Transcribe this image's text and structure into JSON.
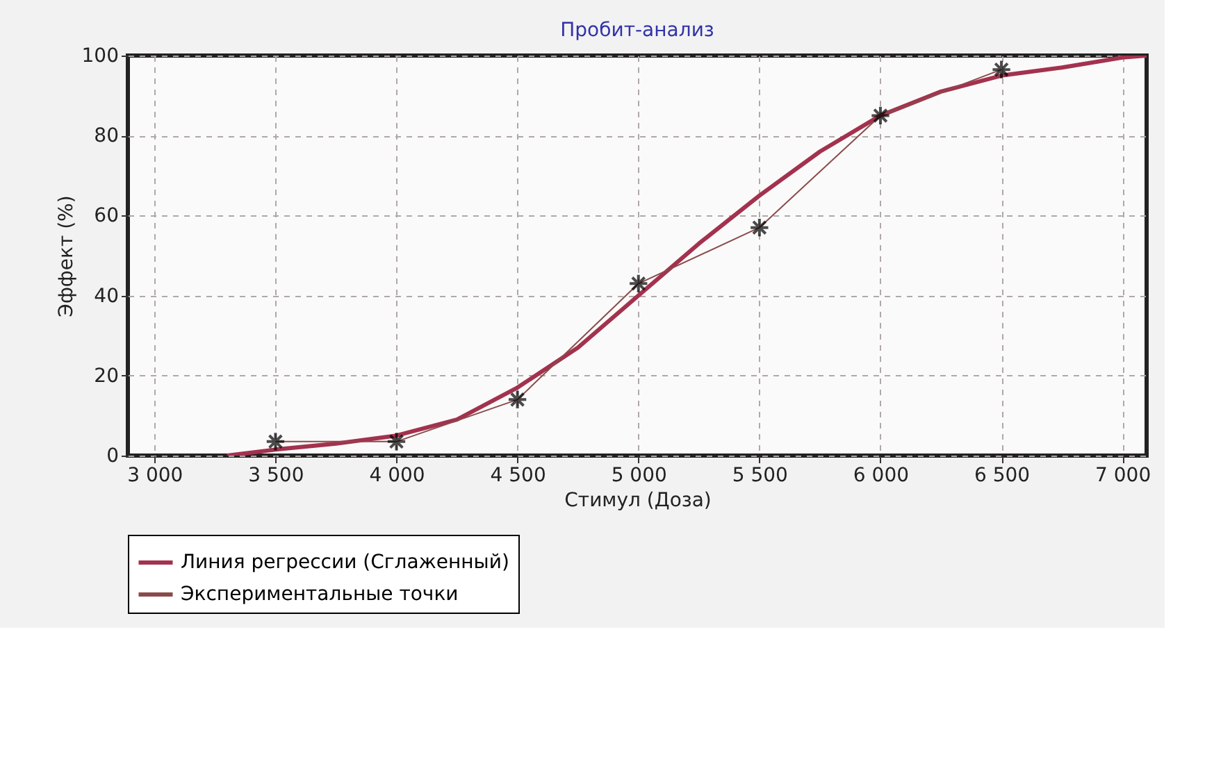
{
  "chart_data": {
    "type": "line",
    "title": "Пробит-анализ",
    "xlabel": "Стимул (Доза)",
    "ylabel": "Эффект (%)",
    "xlim": [
      2890,
      7100
    ],
    "xticks": [
      {
        "value": 3000,
        "label": "3 000"
      },
      {
        "value": 3500,
        "label": "3 500"
      },
      {
        "value": 4000,
        "label": "4 000"
      },
      {
        "value": 4500,
        "label": "4 500"
      },
      {
        "value": 5000,
        "label": "5 000"
      },
      {
        "value": 5500,
        "label": "5 500"
      },
      {
        "value": 6000,
        "label": "6 000"
      },
      {
        "value": 6500,
        "label": "6 500"
      },
      {
        "value": 7000,
        "label": "7 000"
      }
    ],
    "ylim": [
      0,
      100
    ],
    "yticks": [
      0,
      20,
      40,
      60,
      80,
      100
    ],
    "grid": true,
    "legend": "bottom",
    "series": [
      {
        "name": "Линия регрессии (Сглаженный)",
        "color": "#a3324e",
        "marker": "none",
        "x": [
          3300,
          3500,
          3750,
          4000,
          4250,
          4500,
          4750,
          5000,
          5250,
          5500,
          5750,
          6000,
          6250,
          6500,
          6750,
          7000,
          7100
        ],
        "values": [
          0,
          1.5,
          3,
          5,
          9,
          17,
          27,
          40,
          53,
          65,
          76,
          85,
          91,
          95,
          97,
          99.5,
          100
        ]
      },
      {
        "name": "Экспериментальные точки",
        "color": "#8b4a4a",
        "marker": "cross",
        "x": [
          3500,
          4000,
          4500,
          5000,
          5500,
          6000,
          6500
        ],
        "values": [
          3.5,
          3.5,
          14,
          43,
          57,
          85,
          96.5
        ]
      }
    ]
  }
}
